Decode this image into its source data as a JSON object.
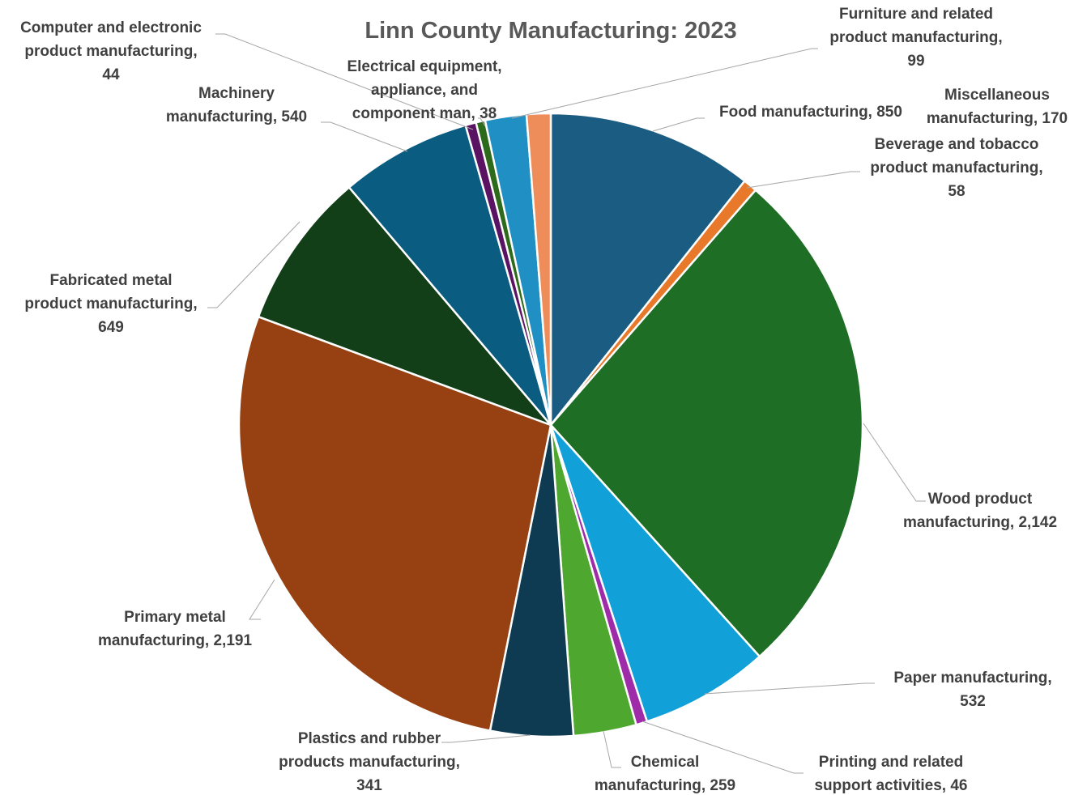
{
  "chart_data": {
    "type": "pie",
    "title": "Linn County Manufacturing: 2023",
    "start_angle_deg": 0,
    "direction": "clockwise",
    "slices": [
      {
        "label": "Food manufacturing",
        "value": 850,
        "display_value": "850",
        "color": "#1a5c82",
        "label_lines": [
          "Food manufacturing, 850"
        ]
      },
      {
        "label": "Beverage and tobacco product manufacturing",
        "value": 58,
        "display_value": "58",
        "color": "#e8792b",
        "label_lines": [
          "Beverage and tobacco",
          "product manufacturing,",
          "58"
        ]
      },
      {
        "label": "Wood product manufacturing",
        "value": 2142,
        "display_value": "2,142",
        "color": "#1e6e26",
        "label_lines": [
          "Wood product",
          "manufacturing, 2,142"
        ]
      },
      {
        "label": "Paper manufacturing",
        "value": 532,
        "display_value": "532",
        "color": "#11a0d8",
        "label_lines": [
          "Paper manufacturing,",
          "532"
        ]
      },
      {
        "label": "Printing and related support activities",
        "value": 46,
        "display_value": "46",
        "color": "#9e2ba8",
        "label_lines": [
          "Printing and related",
          "support activities, 46"
        ]
      },
      {
        "label": "Chemical manufacturing",
        "value": 259,
        "display_value": "259",
        "color": "#4ea72e",
        "label_lines": [
          "Chemical",
          "manufacturing, 259"
        ]
      },
      {
        "label": "Plastics and rubber products manufacturing",
        "value": 341,
        "display_value": "341",
        "color": "#0f3b52",
        "label_lines": [
          "Plastics and rubber",
          "products manufacturing,",
          "341"
        ]
      },
      {
        "label": "Primary metal manufacturing",
        "value": 2191,
        "display_value": "2,191",
        "color": "#974011",
        "label_lines": [
          "Primary metal",
          "manufacturing, 2,191"
        ]
      },
      {
        "label": "Fabricated metal product manufacturing",
        "value": 649,
        "display_value": "649",
        "color": "#123f17",
        "label_lines": [
          "Fabricated metal",
          "product manufacturing,",
          "649"
        ]
      },
      {
        "label": "Machinery manufacturing",
        "value": 540,
        "display_value": "540",
        "color": "#0a5d80",
        "label_lines": [
          "Machinery",
          "manufacturing, 540"
        ]
      },
      {
        "label": "Computer and electronic product manufacturing",
        "value": 44,
        "display_value": "44",
        "color": "#5a1263",
        "label_lines": [
          "Computer and electronic",
          "product manufacturing,",
          "44"
        ]
      },
      {
        "label": "Electrical equipment, appliance, and component man",
        "value": 38,
        "display_value": "38",
        "color": "#2e6a1b",
        "label_lines": [
          "Electrical equipment,",
          "appliance, and",
          "component man, 38"
        ]
      },
      {
        "label": "Miscellaneous manufacturing",
        "value": 170,
        "display_value": "170",
        "color": "#1f8fc4",
        "label_lines": [
          "Miscellaneous",
          "manufacturing, 170"
        ]
      },
      {
        "label": "Furniture and related product manufacturing",
        "value": 99,
        "display_value": "99",
        "color": "#ee8c5a",
        "label_lines": [
          "Furniture and related",
          "product manufacturing,",
          "99"
        ]
      }
    ]
  }
}
